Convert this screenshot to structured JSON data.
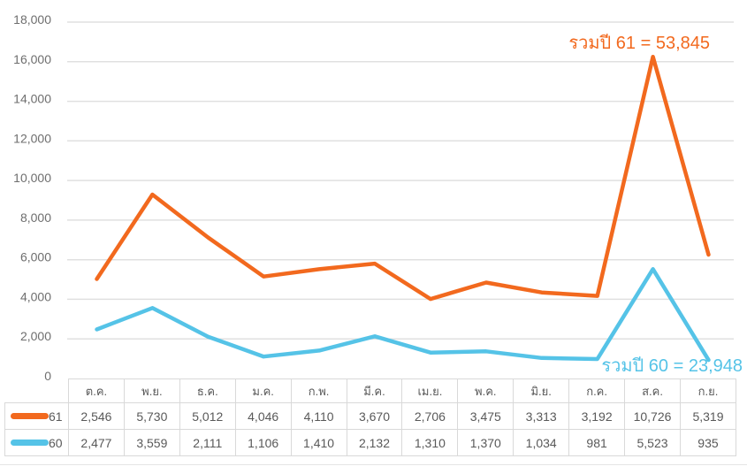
{
  "chart_data": {
    "type": "line",
    "stacked": true,
    "grid": true,
    "legend_position": "table-left",
    "title": "",
    "xlabel": "",
    "ylabel": "",
    "ylim": [
      0,
      18000
    ],
    "ytick_step": 2000,
    "yticks": [
      "0",
      "2,000",
      "4,000",
      "6,000",
      "8,000",
      "10,000",
      "12,000",
      "14,000",
      "16,000",
      "18,000"
    ],
    "categories": [
      "ต.ค.",
      "พ.ย.",
      "ธ.ค.",
      "ม.ค.",
      "ก.พ.",
      "มี.ค.",
      "เม.ย.",
      "พ.ค.",
      "มิ.ย.",
      "ก.ค.",
      "ส.ค.",
      "ก.ย."
    ],
    "series": [
      {
        "name": "61",
        "color": "#f2691e",
        "values": [
          2546,
          5730,
          5012,
          4046,
          4110,
          3670,
          2706,
          3475,
          3313,
          3192,
          10726,
          5319
        ],
        "total": 53845
      },
      {
        "name": "60",
        "color": "#55c3e7",
        "values": [
          2477,
          3559,
          2111,
          1106,
          1410,
          2132,
          1310,
          1370,
          1034,
          981,
          5523,
          935
        ],
        "total": 23948
      }
    ]
  },
  "annotations": {
    "total_61": "รวมปี 61 = 53,845",
    "total_60": "รวมปี 60 = 23,948"
  },
  "table": {
    "row_labels": [
      "61",
      "60"
    ],
    "columns": [
      "ต.ค.",
      "พ.ย.",
      "ธ.ค.",
      "ม.ค.",
      "ก.พ.",
      "มี.ค.",
      "เม.ย.",
      "พ.ค.",
      "มิ.ย.",
      "ก.ค.",
      "ส.ค.",
      "ก.ย."
    ],
    "rows": [
      [
        "2,546",
        "5,730",
        "5,012",
        "4,046",
        "4,110",
        "3,670",
        "2,706",
        "3,475",
        "3,313",
        "3,192",
        "10,726",
        "5,319"
      ],
      [
        "2,477",
        "3,559",
        "2,111",
        "1,106",
        "1,410",
        "2,132",
        "1,310",
        "1,370",
        "1,034",
        "981",
        "5,523",
        "935"
      ]
    ]
  },
  "colors": {
    "series61": "#f2691e",
    "series60": "#55c3e7",
    "grid": "#e0e0e0",
    "table_border": "#d9d9d9",
    "text": "#595959",
    "ytick_text": "#6e6e6e"
  }
}
